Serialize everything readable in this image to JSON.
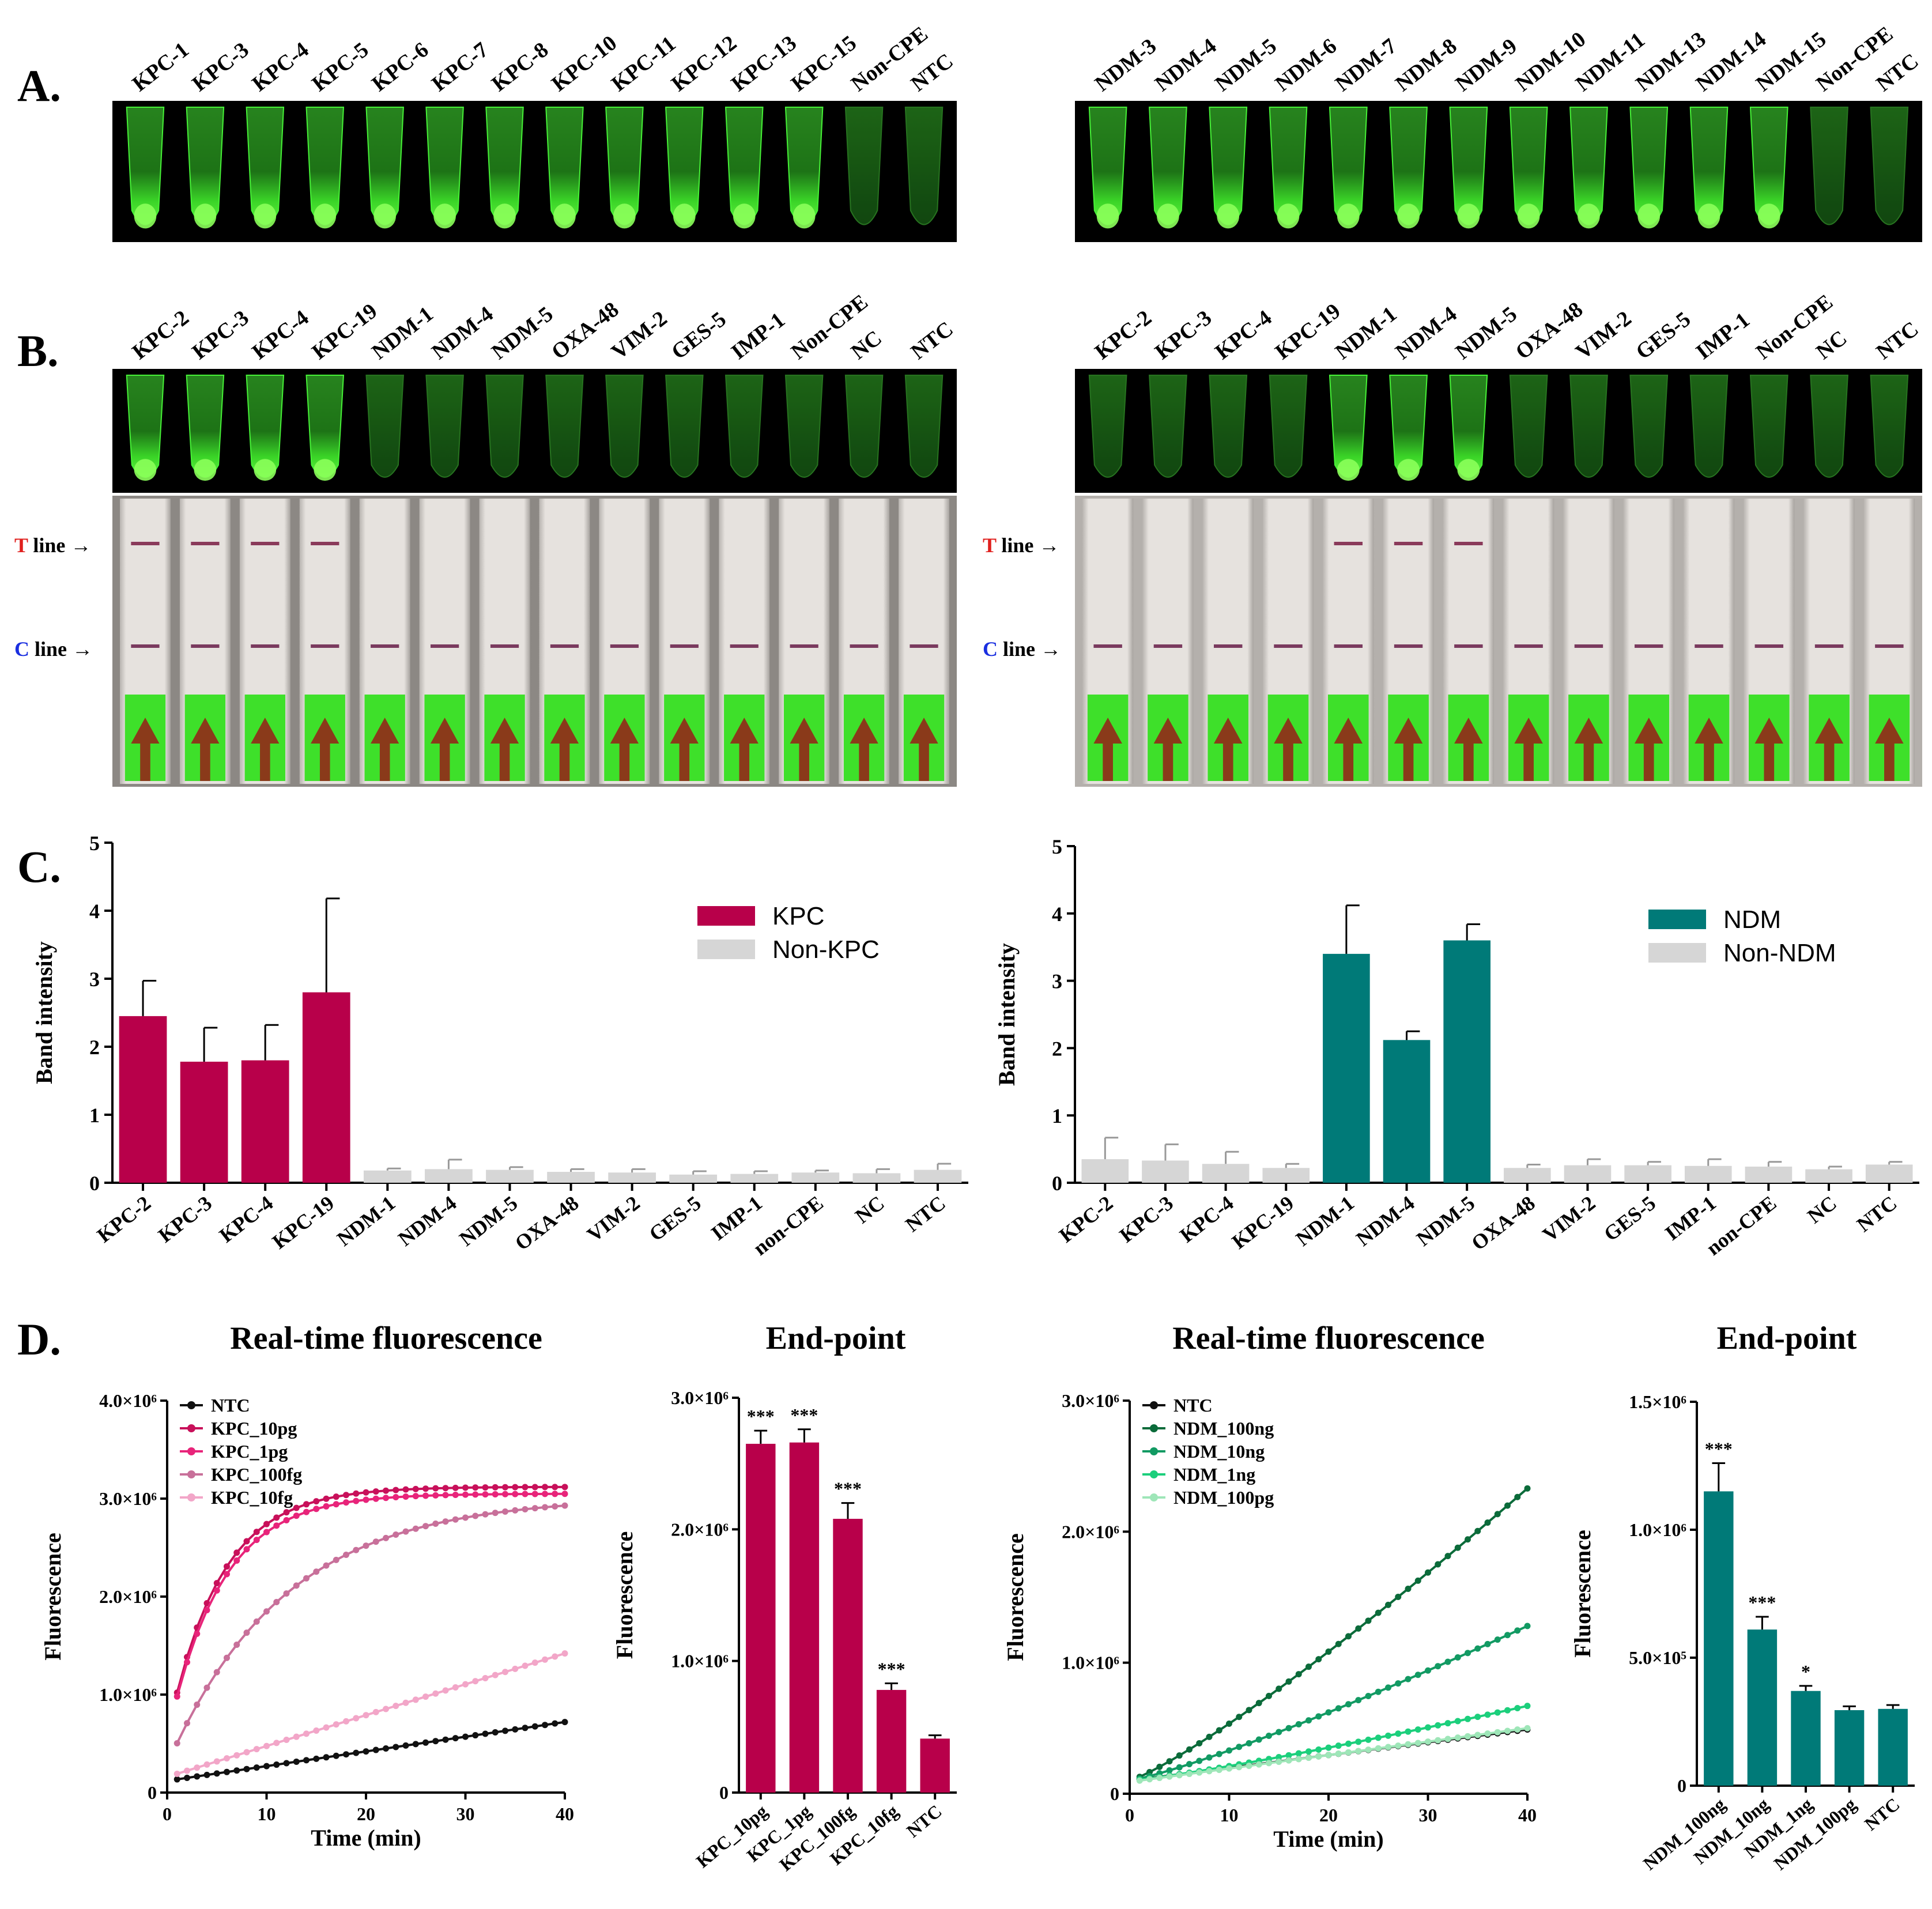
{
  "panels": {
    "A": {
      "letter": "A.",
      "left_labels": [
        "KPC-1",
        "KPC-3",
        "KPC-4",
        "KPC-5",
        "KPC-6",
        "KPC-7",
        "KPC-8",
        "KPC-10",
        "KPC-11",
        "KPC-12",
        "KPC-13",
        "KPC-15",
        "Non-CPE",
        "NTC"
      ],
      "left_bright": [
        1,
        1,
        1,
        1,
        1,
        1,
        1,
        1,
        1,
        1,
        1,
        1,
        0,
        0
      ],
      "right_labels": [
        "NDM-3",
        "NDM-4",
        "NDM-5",
        "NDM-6",
        "NDM-7",
        "NDM-8",
        "NDM-9",
        "NDM-10",
        "NDM-11",
        "NDM-13",
        "NDM-14",
        "NDM-15",
        "Non-CPE",
        "NTC"
      ],
      "right_bright": [
        1,
        1,
        1,
        1,
        1,
        1,
        1,
        1,
        1,
        1,
        1,
        1,
        0,
        0
      ]
    },
    "B": {
      "letter": "B.",
      "labels": [
        "KPC-2",
        "KPC-3",
        "KPC-4",
        "KPC-19",
        "NDM-1",
        "NDM-4",
        "NDM-5",
        "OXA-48",
        "VIM-2",
        "GES-5",
        "IMP-1",
        "Non-CPE",
        "NC",
        "NTC"
      ],
      "left_bright": [
        1,
        1,
        1,
        1,
        0,
        0,
        0,
        0,
        0,
        0,
        0,
        0,
        0,
        0
      ],
      "left_tline": [
        1,
        1,
        1,
        1,
        0,
        0,
        0,
        0,
        0,
        0,
        0,
        0,
        0,
        0
      ],
      "right_bright": [
        0,
        0,
        0,
        0,
        1,
        1,
        1,
        0,
        0,
        0,
        0,
        0,
        0,
        0
      ],
      "right_tline": [
        0,
        0,
        0,
        0,
        1,
        1,
        1,
        0,
        0,
        0,
        0,
        0,
        0,
        0
      ],
      "t_letter": "T",
      "c_letter": "C",
      "line_word": "line",
      "arrow": "→"
    },
    "C": {
      "letter": "C.",
      "ylabel": "Band intensity",
      "categories_left": [
        "KPC-2",
        "KPC-3",
        "KPC-4",
        "KPC-19",
        "NDM-1",
        "NDM-4",
        "NDM-5",
        "OXA-48",
        "VIM-2",
        "GES-5",
        "IMP-1",
        "non-CPE",
        "NC",
        "NTC"
      ],
      "categories_right": [
        "KPC-2",
        "KPC-3",
        "KPC-4",
        "KPC-19",
        "NDM-1",
        "NDM-4",
        "NDM-5",
        "OXA-48",
        "VIM-2",
        "GES-5",
        "IMP-1",
        "non-CPE",
        "NC",
        "NTC"
      ],
      "legend_left": [
        "KPC",
        "Non-KPC"
      ],
      "legend_right": [
        "NDM",
        "Non-NDM"
      ]
    },
    "D": {
      "letter": "D.",
      "title_rt": "Real-time fluorescence",
      "title_ep": "End-point",
      "xlabel": "Time (min)",
      "ylabel": "Fluorescence"
    }
  },
  "colors": {
    "kpc": "#b8004a",
    "ndm": "#007a78",
    "grey": "#d6d6d6",
    "gel_bg": "#000000",
    "glow": "#3aff2a"
  },
  "chart_data": [
    {
      "id": "C-left",
      "type": "bar",
      "title": "",
      "ylabel": "Band intensity",
      "ylim": [
        0,
        5
      ],
      "yticks": [
        "0",
        "1",
        "2",
        "3",
        "4",
        "5"
      ],
      "categories": [
        "KPC-2",
        "KPC-3",
        "KPC-4",
        "KPC-19",
        "NDM-1",
        "NDM-4",
        "NDM-5",
        "OXA-48",
        "VIM-2",
        "GES-5",
        "IMP-1",
        "non-CPE",
        "NC",
        "NTC"
      ],
      "values": [
        2.45,
        1.78,
        1.8,
        2.8,
        0.18,
        0.2,
        0.19,
        0.16,
        0.15,
        0.12,
        0.13,
        0.15,
        0.14,
        0.19
      ],
      "errors": [
        0.52,
        0.5,
        0.52,
        1.38,
        0.03,
        0.14,
        0.04,
        0.04,
        0.05,
        0.05,
        0.04,
        0.03,
        0.06,
        0.09
      ],
      "highlight": [
        1,
        1,
        1,
        1,
        0,
        0,
        0,
        0,
        0,
        0,
        0,
        0,
        0,
        0
      ],
      "legend": [
        "KPC",
        "Non-KPC"
      ]
    },
    {
      "id": "C-right",
      "type": "bar",
      "title": "",
      "ylabel": "Band intensity",
      "ylim": [
        0,
        5
      ],
      "yticks": [
        "0",
        "1",
        "2",
        "3",
        "4",
        "5"
      ],
      "categories": [
        "KPC-2",
        "KPC-3",
        "KPC-4",
        "KPC-19",
        "NDM-1",
        "NDM-4",
        "NDM-5",
        "OXA-48",
        "VIM-2",
        "GES-5",
        "IMP-1",
        "non-CPE",
        "NC",
        "NTC"
      ],
      "values": [
        0.35,
        0.33,
        0.28,
        0.22,
        3.4,
        2.12,
        3.6,
        0.22,
        0.26,
        0.26,
        0.25,
        0.24,
        0.2,
        0.27
      ],
      "errors": [
        0.32,
        0.24,
        0.18,
        0.06,
        0.72,
        0.13,
        0.24,
        0.05,
        0.09,
        0.05,
        0.1,
        0.07,
        0.04,
        0.04
      ],
      "highlight": [
        0,
        0,
        0,
        0,
        1,
        1,
        1,
        0,
        0,
        0,
        0,
        0,
        0,
        0
      ],
      "legend": [
        "NDM",
        "Non-NDM"
      ]
    },
    {
      "id": "D-kpc-rt",
      "type": "line",
      "title": "Real-time fluorescence",
      "xlabel": "Time (min)",
      "ylabel": "Fluorescence",
      "xlim": [
        0,
        40
      ],
      "ylim": [
        0,
        4000000
      ],
      "xticks": [
        "0",
        "10",
        "20",
        "30",
        "40"
      ],
      "yticks": [
        "0",
        "1.0×10⁶",
        "2.0×10⁶",
        "3.0×10⁶",
        "4.0×10⁶"
      ],
      "series": [
        {
          "name": "NTC",
          "color": "#111111",
          "kind": "linear",
          "start": 120000,
          "end": 720000
        },
        {
          "name": "KPC_10pg",
          "color": "#c8105a",
          "kind": "sat",
          "start": 580000,
          "plateau": 3120000,
          "k": 0.19
        },
        {
          "name": "KPC_1pg",
          "color": "#e8247a",
          "kind": "sat",
          "start": 560000,
          "plateau": 3050000,
          "k": 0.185
        },
        {
          "name": "KPC_100fg",
          "color": "#c8709a",
          "kind": "sat",
          "start": 280000,
          "plateau": 3020000,
          "k": 0.085
        },
        {
          "name": "KPC_10fg",
          "color": "#f2a6c8",
          "kind": "linear",
          "start": 160000,
          "end": 1420000
        }
      ]
    },
    {
      "id": "D-kpc-ep",
      "type": "bar",
      "title": "End-point",
      "ylabel": "Fluorescence",
      "ylim": [
        0,
        3000000
      ],
      "yticks": [
        "0",
        "1.0×10⁶",
        "2.0×10⁶",
        "3.0×10⁶"
      ],
      "categories": [
        "KPC_10pg",
        "KPC_1pg",
        "KPC_100fg",
        "KPC_10fg",
        "NTC"
      ],
      "values": [
        2650000,
        2660000,
        2080000,
        780000,
        410000
      ],
      "errors": [
        100000,
        100000,
        120000,
        50000,
        25000
      ],
      "annotations": [
        "***",
        "***",
        "***",
        "***",
        ""
      ]
    },
    {
      "id": "D-ndm-rt",
      "type": "line",
      "title": "Real-time fluorescence",
      "xlabel": "Time (min)",
      "ylabel": "Fluorescence",
      "xlim": [
        0,
        40
      ],
      "ylim": [
        0,
        3000000
      ],
      "xticks": [
        "0",
        "10",
        "20",
        "30",
        "40"
      ],
      "yticks": [
        "0",
        "1.0×10⁶",
        "2.0×10⁶",
        "3.0×10⁶"
      ],
      "series": [
        {
          "name": "NTC",
          "color": "#111111",
          "kind": "linear",
          "start": 100000,
          "end": 490000
        },
        {
          "name": "NDM_100ng",
          "color": "#0b6b3a",
          "kind": "accel",
          "start": 100000,
          "end": 2330000
        },
        {
          "name": "NDM_10ng",
          "color": "#129a63",
          "kind": "accel",
          "start": 100000,
          "end": 1280000
        },
        {
          "name": "NDM_1ng",
          "color": "#1ccf7c",
          "kind": "accel",
          "start": 100000,
          "end": 670000
        },
        {
          "name": "NDM_100pg",
          "color": "#9ee6b8",
          "kind": "linear",
          "start": 90000,
          "end": 500000
        }
      ]
    },
    {
      "id": "D-ndm-ep",
      "type": "bar",
      "title": "End-point",
      "ylabel": "Fluorescence",
      "ylim": [
        0,
        1500000
      ],
      "yticks": [
        "0",
        "5.0×10⁵",
        "1.0×10⁶",
        "1.5×10⁶"
      ],
      "categories": [
        "NDM_100ng",
        "NDM_10ng",
        "NDM_1ng",
        "NDM_100pg",
        "NTC"
      ],
      "values": [
        1150000,
        610000,
        370000,
        295000,
        300000
      ],
      "errors": [
        110000,
        50000,
        20000,
        15000,
        15000
      ],
      "annotations": [
        "***",
        "***",
        "*",
        "",
        ""
      ]
    }
  ]
}
